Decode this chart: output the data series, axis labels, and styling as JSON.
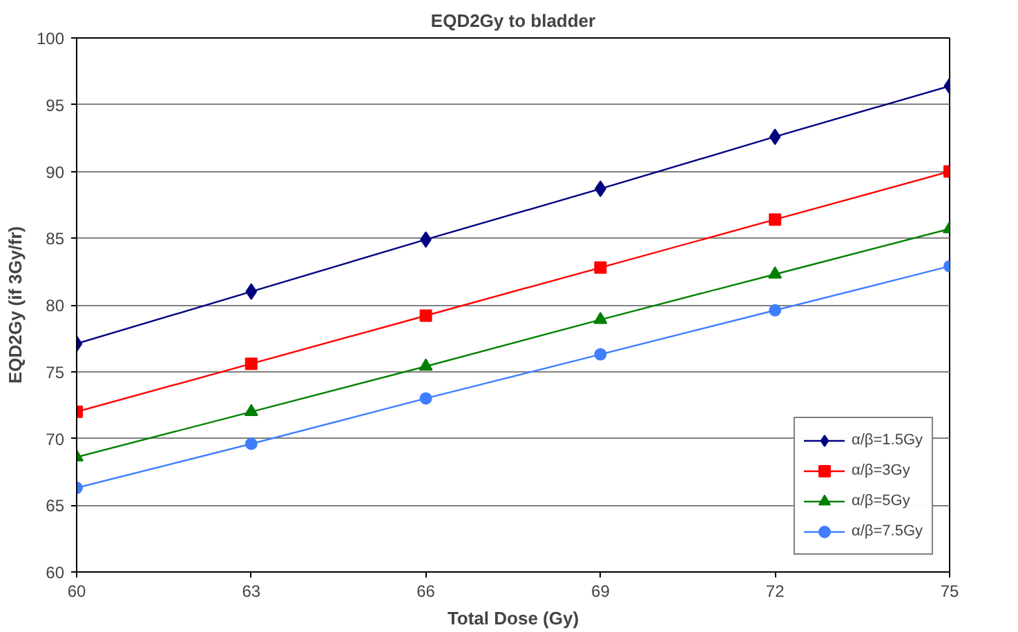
{
  "chart_data": {
    "type": "line",
    "title": "EQD2Gy to bladder",
    "xlabel": "Total Dose (Gy)",
    "ylabel": "EQD2Gy (if 3Gy/fr)",
    "x": [
      60,
      63,
      66,
      69,
      72,
      75
    ],
    "xlim": [
      60,
      75
    ],
    "xticks": [
      60,
      63,
      66,
      69,
      72,
      75
    ],
    "ylim": [
      60,
      100
    ],
    "yticks": [
      60,
      65,
      70,
      75,
      80,
      85,
      90,
      95,
      100
    ],
    "grid": "y",
    "legend": "bottom right",
    "line_style": "solid",
    "series": [
      {
        "name": "α/β=1.5Gy",
        "color": "#000080",
        "marker": "diamond",
        "values": [
          77.1,
          81.0,
          84.9,
          88.7,
          92.6,
          96.4
        ]
      },
      {
        "name": "α/β=3Gy",
        "color": "#ff0000",
        "marker": "square",
        "values": [
          72.0,
          75.6,
          79.2,
          82.8,
          86.4,
          90.0
        ]
      },
      {
        "name": "α/β=5Gy",
        "color": "#008000",
        "marker": "triangle",
        "values": [
          68.6,
          72.0,
          75.4,
          78.9,
          82.3,
          85.7
        ]
      },
      {
        "name": "α/β=7.5Gy",
        "color": "#3f7fff",
        "marker": "circle",
        "values": [
          66.3,
          69.6,
          73.0,
          76.3,
          79.6,
          82.9
        ]
      }
    ]
  }
}
